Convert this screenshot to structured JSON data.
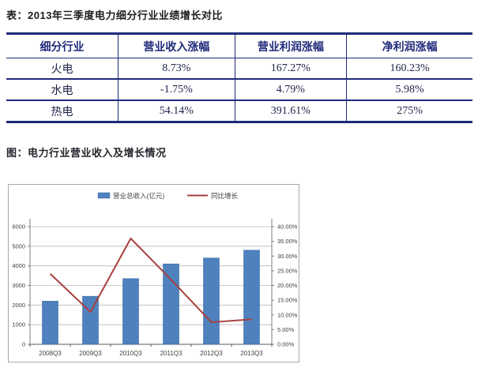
{
  "titles": {
    "table_title": "表：2013年三季度电力细分行业业绩增长对比",
    "figure_title": "图：电力行业营业收入及增长情况"
  },
  "table": {
    "headers": [
      "细分行业",
      "营业收入涨幅",
      "营业利润涨幅",
      "净利润涨幅"
    ],
    "rows": [
      [
        "火电",
        "8.73%",
        "167.27%",
        "160.23%"
      ],
      [
        "水电",
        "-1.75%",
        "4.79%",
        "5.98%"
      ],
      [
        "热电",
        "54.14%",
        "391.61%",
        "275%"
      ]
    ]
  },
  "chart_data": {
    "type": "bar",
    "subtype": "bar-line-combo",
    "title": "电力行业营业收入及增长情况",
    "categories": [
      "2008Q3",
      "2009Q3",
      "2010Q3",
      "2011Q3",
      "2012Q3",
      "2013Q3"
    ],
    "series": [
      {
        "name": "营业总收入(亿元)",
        "type": "bar",
        "axis": "left",
        "values": [
          2200,
          2450,
          3350,
          4100,
          4400,
          4800
        ]
      },
      {
        "name": "同比增长",
        "type": "line",
        "axis": "right",
        "values": [
          24,
          11,
          36,
          22,
          7.5,
          8.5
        ],
        "unit": "%"
      }
    ],
    "left_axis": {
      "min": 0,
      "max": 6000,
      "step": 1000,
      "labels": [
        "0",
        "1000",
        "2000",
        "3000",
        "4000",
        "5000",
        "6000"
      ]
    },
    "right_axis": {
      "min": 0,
      "max": 40,
      "step": 5,
      "labels": [
        "0.00%",
        "5.00%",
        "10.00%",
        "15.00%",
        "20.00%",
        "25.00%",
        "30.00%",
        "35.00%",
        "40.00%"
      ]
    },
    "grid": true,
    "legend_position": "top"
  },
  "colors": {
    "navy_border": "#1f2a7a",
    "bar_fill": "#4e81bd",
    "bar_edge": "#3c6da8",
    "trend_line": "#a8403d",
    "gridline": "#b9b9b9",
    "axis_line": "#7f7f7f",
    "axis_text": "#3f3f3f"
  }
}
